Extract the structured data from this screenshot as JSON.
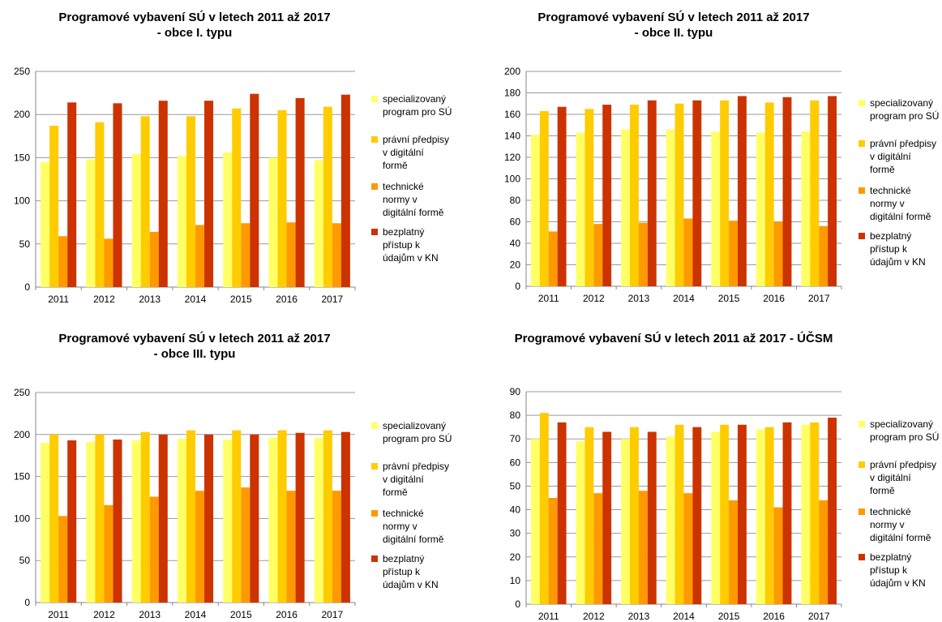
{
  "colors": {
    "series": [
      "#FFFF66",
      "#FFCC00",
      "#FF9900",
      "#CC3300"
    ],
    "grid": "#9a9a9a",
    "axis": "#868686",
    "text": "#000000"
  },
  "chart_data": [
    {
      "type": "bar",
      "title": "Programové vybavení SÚ v letech 2011 až 2017\n- obce I. typu",
      "categories": [
        "2011",
        "2012",
        "2013",
        "2014",
        "2015",
        "2016",
        "2017"
      ],
      "ylim": [
        0,
        250
      ],
      "yticks": [
        0,
        50,
        100,
        150,
        200,
        250
      ],
      "grid": true,
      "legend_position": "right",
      "series": [
        {
          "name": "specializovaný program pro SÚ",
          "values": [
            145,
            148,
            154,
            152,
            156,
            150,
            147
          ]
        },
        {
          "name": "právní předpisy v digitální formě",
          "values": [
            187,
            191,
            198,
            198,
            207,
            205,
            209
          ]
        },
        {
          "name": "technické normy v digitální formě",
          "values": [
            59,
            56,
            64,
            72,
            74,
            75,
            74
          ]
        },
        {
          "name": "bezplatný přístup k údajům v KN",
          "values": [
            214,
            213,
            216,
            216,
            224,
            219,
            223
          ]
        }
      ]
    },
    {
      "type": "bar",
      "title": "Programové vybavení SÚ v letech 2011 až 2017\n- obce II. typu",
      "categories": [
        "2011",
        "2012",
        "2013",
        "2014",
        "2015",
        "2016",
        "2017"
      ],
      "ylim": [
        0,
        200
      ],
      "yticks": [
        0,
        20,
        40,
        60,
        80,
        100,
        120,
        140,
        160,
        180,
        200
      ],
      "grid": true,
      "legend_position": "right",
      "series": [
        {
          "name": "specializovaný program pro SÚ",
          "values": [
            141,
            143,
            146,
            146,
            144,
            143,
            144
          ]
        },
        {
          "name": "právní předpisy v digitální formě",
          "values": [
            163,
            165,
            169,
            170,
            173,
            171,
            173
          ]
        },
        {
          "name": "technické normy v digitální formě",
          "values": [
            51,
            58,
            59,
            63,
            61,
            60,
            56
          ]
        },
        {
          "name": "bezplatný přístup k údajům v KN",
          "values": [
            167,
            169,
            173,
            173,
            177,
            176,
            177
          ]
        }
      ]
    },
    {
      "type": "bar",
      "title": "Programové vybavení SÚ v letech 2011 až 2017\n- obce III. typu",
      "categories": [
        "2011",
        "2012",
        "2013",
        "2014",
        "2015",
        "2016",
        "2017"
      ],
      "ylim": [
        0,
        250
      ],
      "yticks": [
        0,
        50,
        100,
        150,
        200,
        250
      ],
      "grid": true,
      "legend_position": "right",
      "series": [
        {
          "name": "specializovaný program pro SÚ",
          "values": [
            190,
            191,
            193,
            195,
            194,
            196,
            196
          ]
        },
        {
          "name": "právní předpisy v digitální formě",
          "values": [
            200,
            200,
            203,
            205,
            205,
            205,
            205
          ]
        },
        {
          "name": "technické normy v digitální formě",
          "values": [
            103,
            116,
            126,
            133,
            137,
            133,
            133
          ]
        },
        {
          "name": "bezplatný přístup k údajům v KN",
          "values": [
            193,
            194,
            200,
            200,
            200,
            202,
            203
          ]
        }
      ]
    },
    {
      "type": "bar",
      "title": "Programové vybavení SÚ v letech 2011 až 2017 - ÚČSM",
      "categories": [
        "2011",
        "2012",
        "2013",
        "2014",
        "2015",
        "2016",
        "2017"
      ],
      "ylim": [
        0,
        90
      ],
      "yticks": [
        0,
        10,
        20,
        30,
        40,
        50,
        60,
        70,
        80,
        90
      ],
      "grid": true,
      "legend_position": "right",
      "series": [
        {
          "name": "specializovaný program pro SÚ",
          "values": [
            70,
            69,
            70,
            71,
            73,
            74,
            76
          ]
        },
        {
          "name": "právní předpisy v digitální formě",
          "values": [
            81,
            75,
            75,
            76,
            76,
            75,
            77
          ]
        },
        {
          "name": "technické normy v digitální formě",
          "values": [
            45,
            47,
            48,
            47,
            44,
            41,
            44
          ]
        },
        {
          "name": "bezplatný přístup k údajům v KN",
          "values": [
            77,
            73,
            73,
            75,
            76,
            77,
            79
          ]
        }
      ]
    }
  ],
  "legend_text": [
    [
      "specializovaný",
      "program pro SÚ"
    ],
    [
      "právní předpisy",
      "v digitální",
      "formě"
    ],
    [
      "technické",
      "normy v",
      "digitální formě"
    ],
    [
      "bezplatný",
      "přístup k",
      "údajům v KN"
    ]
  ]
}
